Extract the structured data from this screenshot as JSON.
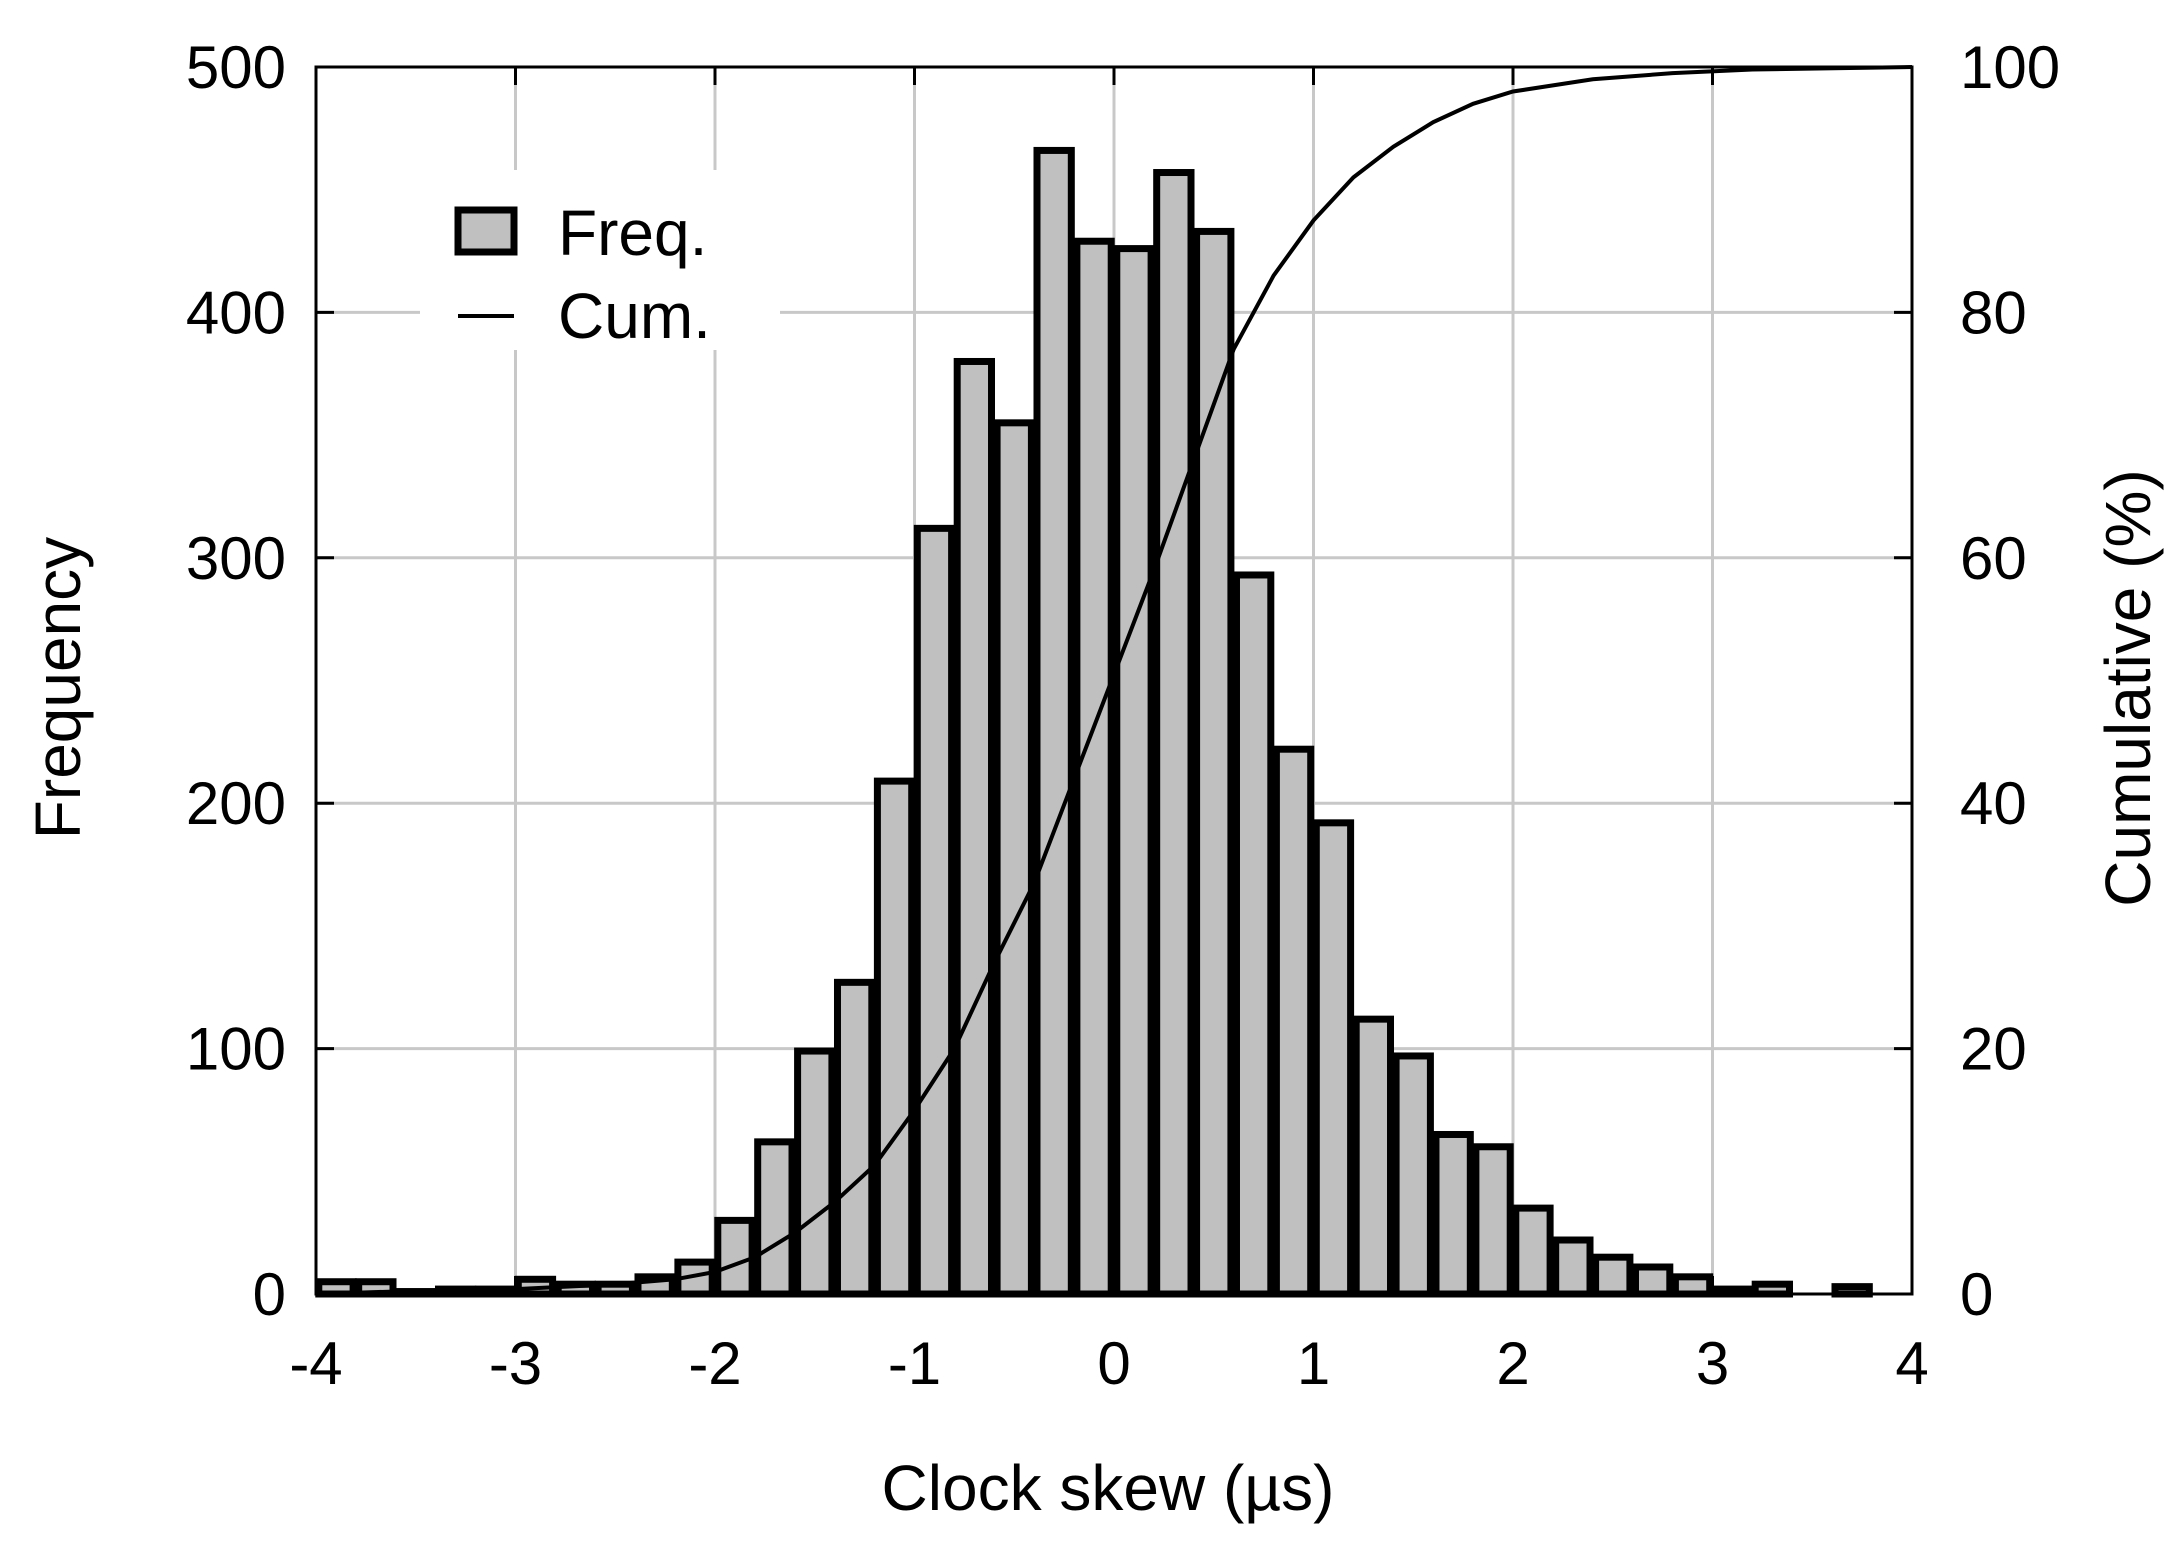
{
  "chart_data": {
    "type": "bar",
    "xlabel": "Clock skew (µs)",
    "ylabel": "Frequency",
    "y2label": "Cumulative (%)",
    "xlim": [
      -4,
      4
    ],
    "ylim": [
      0,
      500
    ],
    "y2lim": [
      0,
      100
    ],
    "xticks": [
      "-4",
      "-3",
      "-2",
      "-1",
      "0",
      "1",
      "2",
      "3",
      "4"
    ],
    "yticks": [
      "0",
      "100",
      "200",
      "300",
      "400",
      "500"
    ],
    "y2ticks": [
      "0",
      "20",
      "40",
      "60",
      "80",
      "100"
    ],
    "grid": true,
    "legend_position": "top-left",
    "bar_color": "#c0c0c0",
    "bin_width": 0.2,
    "series": [
      {
        "name": "Freq.",
        "type": "bar",
        "x": [
          -3.9,
          -3.7,
          -3.5,
          -3.3,
          -3.1,
          -2.9,
          -2.7,
          -2.5,
          -2.3,
          -2.1,
          -1.9,
          -1.7,
          -1.5,
          -1.3,
          -1.1,
          -0.9,
          -0.7,
          -0.5,
          -0.3,
          -0.1,
          0.1,
          0.3,
          0.5,
          0.7,
          0.9,
          1.1,
          1.3,
          1.5,
          1.7,
          1.9,
          2.1,
          2.3,
          2.5,
          2.7,
          2.9,
          3.1,
          3.3,
          3.5,
          3.7
        ],
        "values": [
          5,
          5,
          1,
          2,
          2,
          6,
          4,
          4,
          7,
          13,
          30,
          62,
          99,
          127,
          209,
          312,
          380,
          355,
          466,
          429,
          426,
          457,
          433,
          293,
          222,
          192,
          112,
          97,
          65,
          60,
          35,
          22,
          15,
          11,
          7,
          2,
          4,
          0,
          3
        ]
      },
      {
        "name": "Cum.",
        "type": "line",
        "x": [
          -4.0,
          -3.6,
          -3.0,
          -2.5,
          -2.2,
          -2.0,
          -1.8,
          -1.6,
          -1.4,
          -1.2,
          -1.0,
          -0.8,
          -0.6,
          -0.4,
          -0.2,
          0.0,
          0.2,
          0.4,
          0.6,
          0.8,
          1.0,
          1.2,
          1.4,
          1.6,
          1.8,
          2.0,
          2.4,
          2.8,
          3.2,
          4.0
        ],
        "values": [
          0.0,
          0.2,
          0.4,
          0.8,
          1.2,
          1.8,
          3.0,
          5.0,
          7.5,
          10.5,
          15.0,
          20.0,
          27.0,
          33.5,
          42.0,
          50.5,
          59.0,
          68.0,
          77.0,
          83.0,
          87.5,
          91.0,
          93.5,
          95.5,
          97.0,
          98.0,
          99.0,
          99.5,
          99.8,
          100.0
        ]
      }
    ]
  }
}
